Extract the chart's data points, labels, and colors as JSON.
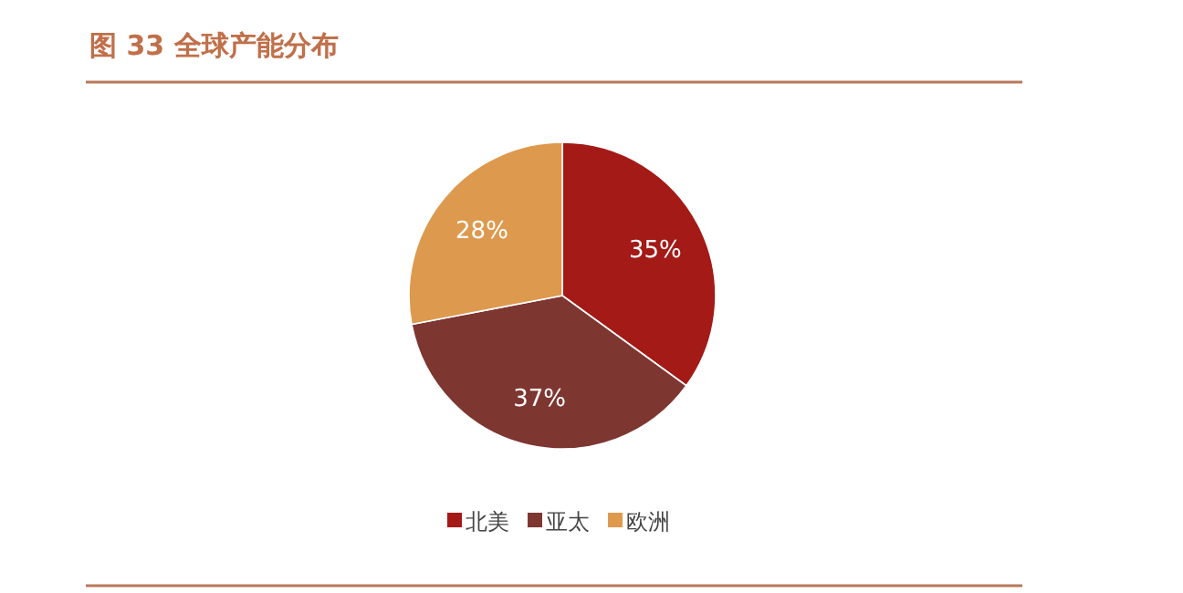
{
  "chart_data": {
    "type": "pie",
    "title": "图 33 全球产能分布",
    "categories": [
      "北美",
      "亚太",
      "欧洲"
    ],
    "values": [
      35,
      37,
      28
    ],
    "colors": [
      "#a31a17",
      "#7e3631",
      "#dd9a4e"
    ],
    "value_labels": [
      "35%",
      "37%",
      "28%"
    ],
    "legend": "bottom"
  }
}
